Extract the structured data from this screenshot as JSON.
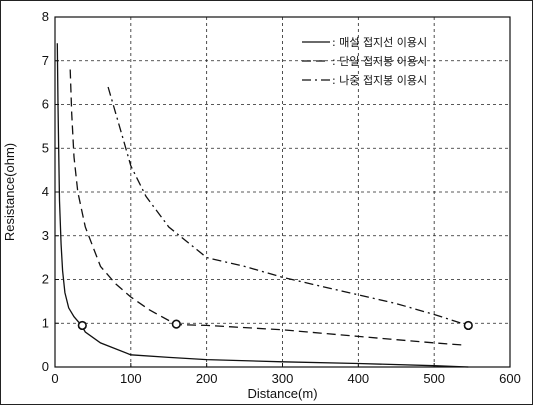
{
  "chart_data": {
    "type": "line",
    "xlabel": "Distance(m)",
    "ylabel": "Resistance(ohm)",
    "xlim": [
      0,
      600
    ],
    "ylim": [
      0,
      8
    ],
    "x_ticks": [
      "0",
      "100",
      "200",
      "300",
      "400",
      "500",
      "600"
    ],
    "y_ticks": [
      "0",
      "1",
      "2",
      "3",
      "4",
      "5",
      "6",
      "7",
      "8"
    ],
    "grid": true,
    "legend_position": "top-right",
    "series": [
      {
        "name": ": 매설 접지선 이용시",
        "style": "solid",
        "points": [
          [
            3,
            7.4
          ],
          [
            4,
            6.0
          ],
          [
            5,
            4.8
          ],
          [
            6,
            3.8
          ],
          [
            8,
            2.8
          ],
          [
            10,
            2.2
          ],
          [
            13,
            1.7
          ],
          [
            18,
            1.35
          ],
          [
            25,
            1.15
          ],
          [
            35,
            0.95
          ],
          [
            40,
            0.8
          ],
          [
            60,
            0.55
          ],
          [
            100,
            0.28
          ],
          [
            150,
            0.22
          ],
          [
            200,
            0.17
          ],
          [
            300,
            0.12
          ],
          [
            400,
            0.08
          ],
          [
            500,
            0.03
          ],
          [
            545,
            0.0
          ]
        ]
      },
      {
        "name": ": 단일 접지봉 이용시",
        "style": "dashed",
        "points": [
          [
            20,
            6.8
          ],
          [
            22,
            5.8
          ],
          [
            25,
            4.8
          ],
          [
            30,
            4.0
          ],
          [
            40,
            3.2
          ],
          [
            60,
            2.3
          ],
          [
            80,
            1.9
          ],
          [
            100,
            1.6
          ],
          [
            125,
            1.3
          ],
          [
            160,
            0.97
          ],
          [
            200,
            0.95
          ],
          [
            300,
            0.85
          ],
          [
            400,
            0.7
          ],
          [
            500,
            0.55
          ],
          [
            540,
            0.5
          ]
        ]
      },
      {
        "name": ": 나중 접지봉 이용시",
        "style": "dashdot",
        "points": [
          [
            70,
            6.4
          ],
          [
            80,
            5.8
          ],
          [
            90,
            5.2
          ],
          [
            100,
            4.6
          ],
          [
            120,
            3.9
          ],
          [
            150,
            3.2
          ],
          [
            200,
            2.5
          ],
          [
            250,
            2.3
          ],
          [
            300,
            2.05
          ],
          [
            350,
            1.85
          ],
          [
            400,
            1.65
          ],
          [
            450,
            1.45
          ],
          [
            500,
            1.2
          ],
          [
            545,
            0.95
          ]
        ]
      }
    ],
    "markers": [
      [
        36,
        0.95
      ],
      [
        160,
        0.98
      ],
      [
        545,
        0.95
      ]
    ]
  }
}
